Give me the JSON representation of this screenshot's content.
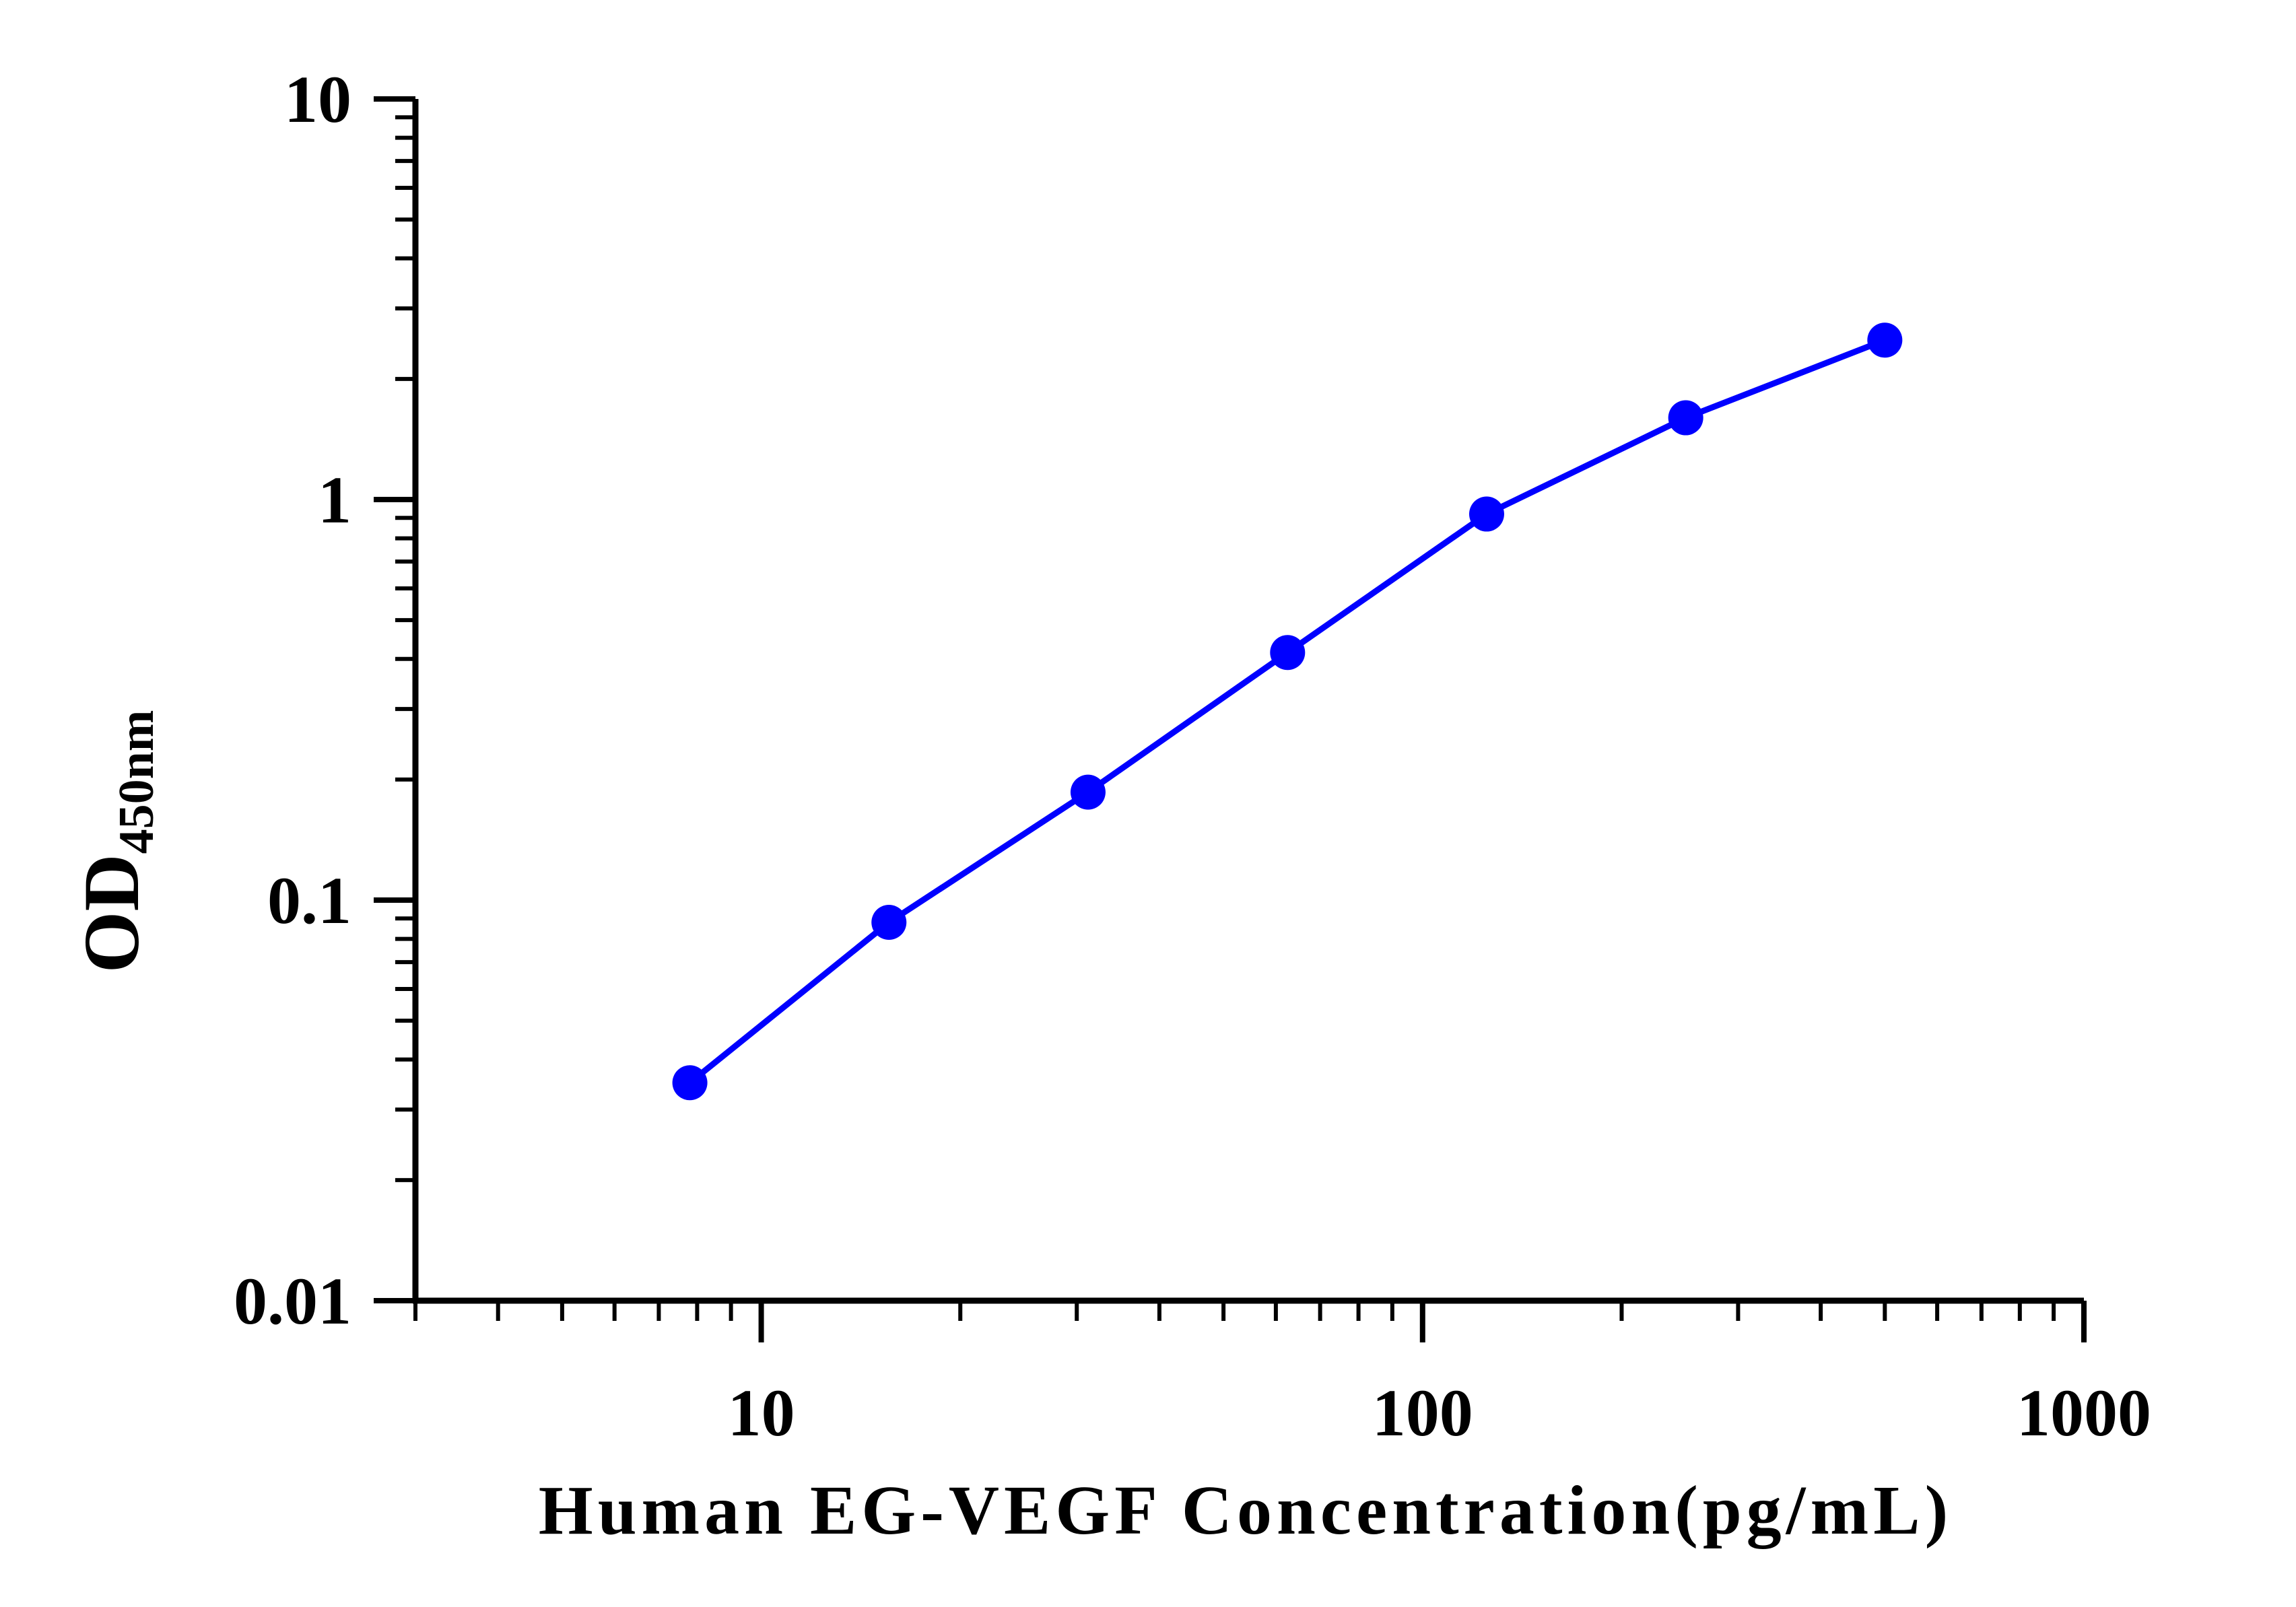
{
  "chart_data": {
    "type": "line",
    "title": "",
    "xlabel": "Human EG-VEGF Concentration(pg/mL)",
    "ylabel": {
      "main": "OD",
      "subscript": "450nm"
    },
    "x_scale": "log",
    "y_scale": "log",
    "xlim": [
      3,
      1000
    ],
    "ylim": [
      0.01,
      10
    ],
    "x_tick_labels": [
      "10",
      "100",
      "1000"
    ],
    "y_tick_labels": [
      "0.01",
      "0.1",
      "1",
      "10"
    ],
    "grid": false,
    "legend": "none",
    "series": [
      {
        "color": "#0000ff",
        "x": [
          7.8,
          15.6,
          31.2,
          62.5,
          125,
          250,
          500
        ],
        "y": [
          0.035,
          0.088,
          0.186,
          0.415,
          0.92,
          1.6,
          2.5
        ]
      }
    ]
  }
}
